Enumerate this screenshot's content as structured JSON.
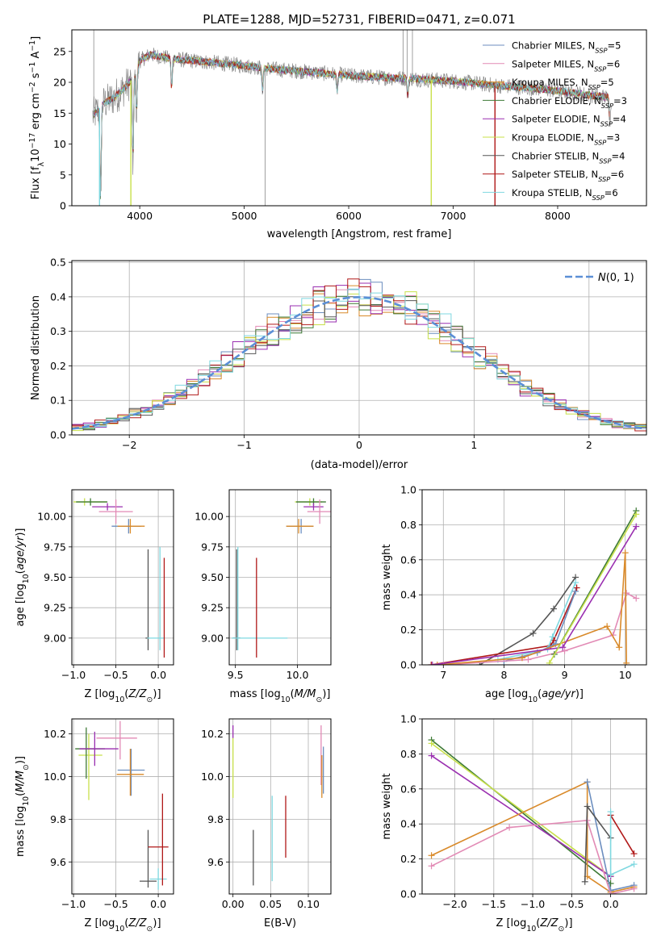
{
  "figure": {
    "title": "PLATE=1288, MJD=52731, FIBERID=0471, z=0.071"
  },
  "colors": {
    "Chabrier MILES": "#6c8ebf",
    "Salpeter MILES": "#e28ab5",
    "Kroupa MILES": "#d98a2a",
    "Chabrier ELODIE": "#3d7a35",
    "Salpeter ELODIE": "#9a2fb0",
    "Kroupa ELODIE": "#c8e04a",
    "Chabrier STELIB": "#555555",
    "Salpeter STELIB": "#b01818",
    "Kroupa STELIB": "#7fd8e0",
    "data": "#8a8a8a",
    "normal_curve": "#5b8fd6"
  },
  "chart_data": [
    {
      "id": "spectrum",
      "type": "line",
      "title": "PLATE=1288, MJD=52731, FIBERID=0471, z=0.071",
      "xlabel": "wavelength [Angstrom, rest frame]",
      "ylabel": "Flux [f_λ 10^-17 erg cm^-2 s^-1 A^-1]",
      "xlim": [
        3350,
        8850
      ],
      "ylim": [
        0,
        28.5
      ],
      "xticks": [
        4000,
        5000,
        6000,
        7000,
        8000
      ],
      "yticks": [
        0,
        5,
        10,
        15,
        20,
        25
      ],
      "grid": false,
      "legend_position": "top-right",
      "legend": [
        {
          "model": "Chabrier MILES",
          "label": "Chabrier MILES, N_SSP=5"
        },
        {
          "model": "Salpeter MILES",
          "label": "Salpeter MILES, N_SSP=6"
        },
        {
          "model": "Kroupa MILES",
          "label": "Kroupa MILES, N_SSP=5"
        },
        {
          "model": "Chabrier ELODIE",
          "label": "Chabrier ELODIE, N_SSP=3"
        },
        {
          "model": "Salpeter ELODIE",
          "label": "Salpeter ELODIE, N_SSP=4"
        },
        {
          "model": "Kroupa ELODIE",
          "label": "Kroupa ELODIE, N_SSP=3"
        },
        {
          "model": "Chabrier STELIB",
          "label": "Chabrier STELIB, N_SSP=4"
        },
        {
          "model": "Salpeter STELIB",
          "label": "Salpeter STELIB, N_SSP=6"
        },
        {
          "model": "Kroupa STELIB",
          "label": "Kroupa STELIB, N_SSP=6"
        }
      ],
      "continuum": {
        "x": [
          3550,
          3650,
          3750,
          3850,
          3950,
          4000,
          4100,
          4300,
          4500,
          4700,
          5000,
          5300,
          5600,
          6000,
          6300,
          6600,
          7000,
          7400,
          7800,
          8200,
          8500
        ],
        "y": [
          14.5,
          16.5,
          17.5,
          19,
          21,
          23.5,
          24.5,
          23.8,
          23.5,
          23.2,
          22.7,
          22.1,
          21.7,
          21.1,
          20.8,
          20.6,
          20.2,
          19.5,
          19.0,
          18.2,
          17.5
        ]
      },
      "absorption_features": [
        {
          "x": 3625,
          "depth": 16
        },
        {
          "x": 3935,
          "depth": 14
        },
        {
          "x": 3970,
          "depth": 7
        },
        {
          "x": 4305,
          "depth": 5
        },
        {
          "x": 5175,
          "depth": 4
        },
        {
          "x": 5890,
          "depth": 3
        },
        {
          "x": 6565,
          "depth": 3
        },
        {
          "x": 8500,
          "depth": 4
        },
        {
          "x": 8545,
          "depth": 4
        },
        {
          "x": 8665,
          "depth": 4
        }
      ],
      "model_dropouts": [
        {
          "model": "Kroupa ELODIE",
          "x": 3915
        },
        {
          "model": "Kroupa ELODIE",
          "x": 6790
        },
        {
          "model": "Salpeter STELIB",
          "x": 7400
        },
        {
          "model": "Kroupa STELIB",
          "x": 3615
        }
      ],
      "data_spikes": [
        {
          "x": 3560,
          "y": 28.5
        },
        {
          "x": 5200,
          "y": 0
        },
        {
          "x": 6520,
          "y": 28.5
        },
        {
          "x": 6560,
          "y": 28.5
        },
        {
          "x": 6610,
          "y": 28.5
        }
      ]
    },
    {
      "id": "residuals",
      "type": "bar",
      "xlabel": "(data-model)/error",
      "ylabel": "Normed distribution",
      "xlim": [
        -2.5,
        2.5
      ],
      "ylim": [
        0,
        0.505
      ],
      "xticks": [
        -2,
        -1,
        0,
        1,
        2
      ],
      "yticks": [
        0.0,
        0.1,
        0.2,
        0.3,
        0.4,
        0.5
      ],
      "grid": true,
      "legend_position": "top-right",
      "legend": [
        {
          "label": "N(0,1)"
        }
      ],
      "bin_width": 0.1
    },
    {
      "id": "age-vs-Z",
      "type": "scatter",
      "xlabel": "Z [log10(Z/Z⊙)]",
      "ylabel": "age  [log10(age/yr)]",
      "xlim": [
        -1.02,
        0.18
      ],
      "ylim": [
        8.78,
        10.22
      ],
      "xticks": [
        -1.0,
        -0.5,
        0.0
      ],
      "yticks": [
        9.0,
        9.25,
        9.5,
        9.75,
        10.0
      ],
      "grid": true,
      "points": [
        {
          "model": "Kroupa ELODIE",
          "x": -0.87,
          "y": 10.12,
          "xerr": [
            0.13,
            0.26
          ],
          "yerr": [
            0.03,
            0.03
          ]
        },
        {
          "model": "Chabrier ELODIE",
          "x": -0.8,
          "y": 10.12,
          "xerr": [
            0.17,
            0.2
          ],
          "yerr": [
            0.03,
            0.03
          ]
        },
        {
          "model": "Salpeter ELODIE",
          "x": -0.6,
          "y": 10.08,
          "xerr": [
            0.18,
            0.18
          ],
          "yerr": [
            0.03,
            0.03
          ]
        },
        {
          "model": "Salpeter MILES",
          "x": -0.5,
          "y": 10.04,
          "xerr": [
            0.2,
            0.2
          ],
          "yerr": [
            0.1,
            0.1
          ]
        },
        {
          "model": "Chabrier MILES",
          "x": -0.35,
          "y": 9.92,
          "xerr": [
            0.2,
            0.15
          ],
          "yerr": [
            0.06,
            0.06
          ]
        },
        {
          "model": "Kroupa MILES",
          "x": -0.33,
          "y": 9.92,
          "xerr": [
            0.15,
            0.17
          ],
          "yerr": [
            0.06,
            0.06
          ]
        },
        {
          "model": "Chabrier STELIB",
          "x": -0.12,
          "y": 9.0,
          "xerr": [
            0.03,
            0.0
          ],
          "yerr": [
            0.1,
            0.73
          ]
        },
        {
          "model": "Kroupa STELIB",
          "x": 0.02,
          "y": 9.0,
          "xerr": [
            0.15,
            0.05
          ],
          "yerr": [
            0.1,
            0.75
          ]
        },
        {
          "model": "Salpeter STELIB",
          "x": 0.07,
          "y": 9.0,
          "xerr": [
            0.0,
            0.0
          ],
          "yerr": [
            0.16,
            0.66
          ]
        }
      ]
    },
    {
      "id": "age-vs-mass",
      "type": "scatter",
      "xlabel": "mass [log10(M/M⊙)]",
      "ylabel": "",
      "xlim": [
        9.45,
        10.27
      ],
      "ylim": [
        8.78,
        10.22
      ],
      "xticks": [
        9.5,
        10.0
      ],
      "yticks": [
        9.0,
        9.25,
        9.5,
        9.75,
        10.0
      ],
      "grid": true,
      "points": [
        {
          "model": "Kroupa ELODIE",
          "x": 10.1,
          "y": 10.12,
          "xerr": [
            0.12,
            0.1
          ],
          "yerr": [
            0.03,
            0.03
          ]
        },
        {
          "model": "Chabrier ELODIE",
          "x": 10.13,
          "y": 10.12,
          "xerr": [
            0.14,
            0.1
          ],
          "yerr": [
            0.03,
            0.03
          ]
        },
        {
          "model": "Salpeter ELODIE",
          "x": 10.13,
          "y": 10.08,
          "xerr": [
            0.08,
            0.08
          ],
          "yerr": [
            0.03,
            0.03
          ]
        },
        {
          "model": "Salpeter MILES",
          "x": 10.18,
          "y": 10.04,
          "xerr": [
            0.1,
            0.1
          ],
          "yerr": [
            0.1,
            0.1
          ]
        },
        {
          "model": "Chabrier MILES",
          "x": 10.03,
          "y": 9.92,
          "xerr": [
            0.12,
            0.1
          ],
          "yerr": [
            0.06,
            0.06
          ]
        },
        {
          "model": "Kroupa MILES",
          "x": 10.01,
          "y": 9.92,
          "xerr": [
            0.1,
            0.12
          ],
          "yerr": [
            0.06,
            0.06
          ]
        },
        {
          "model": "Chabrier STELIB",
          "x": 9.51,
          "y": 9.0,
          "xerr": [
            0.03,
            0.03
          ],
          "yerr": [
            0.1,
            0.73
          ]
        },
        {
          "model": "Kroupa STELIB",
          "x": 9.52,
          "y": 9.0,
          "xerr": [
            0.05,
            0.4
          ],
          "yerr": [
            0.1,
            0.75
          ]
        },
        {
          "model": "Salpeter STELIB",
          "x": 9.67,
          "y": 9.0,
          "xerr": [
            0.0,
            0.0
          ],
          "yerr": [
            0.16,
            0.66
          ]
        }
      ]
    },
    {
      "id": "weight-vs-age",
      "type": "line",
      "xlabel": "age  [log10(age/yr)]",
      "ylabel": "mass weight",
      "xlim": [
        6.65,
        10.35
      ],
      "ylim": [
        0,
        1.0
      ],
      "xticks": [
        7,
        8,
        9,
        10
      ],
      "yticks": [
        0.0,
        0.2,
        0.4,
        0.6,
        0.8,
        1.0
      ],
      "grid": true,
      "series": [
        {
          "model": "Chabrier STELIB",
          "x": [
            7.6,
            8.48,
            8.82,
            9.18
          ],
          "y": [
            0.0,
            0.18,
            0.32,
            0.5
          ]
        },
        {
          "model": "Salpeter STELIB",
          "x": [
            6.8,
            8.77,
            8.82,
            9.2
          ],
          "y": [
            0.0,
            0.11,
            0.14,
            0.44
          ]
        },
        {
          "model": "Kroupa STELIB",
          "x": [
            7.9,
            8.72,
            8.8,
            9.18
          ],
          "y": [
            0.03,
            0.09,
            0.16,
            0.47
          ]
        },
        {
          "model": "Chabrier MILES",
          "x": [
            8.0,
            8.55,
            8.85,
            9.18
          ],
          "y": [
            0.02,
            0.07,
            0.12,
            0.42
          ]
        },
        {
          "model": "Salpeter MILES",
          "x": [
            7.0,
            8.4,
            9.0,
            9.8,
            10.02,
            10.18
          ],
          "y": [
            0.0,
            0.03,
            0.08,
            0.17,
            0.41,
            0.38
          ]
        },
        {
          "model": "Kroupa MILES",
          "x": [
            6.9,
            8.3,
            9.7,
            9.9,
            10.0,
            10.02
          ],
          "y": [
            0.0,
            0.04,
            0.22,
            0.1,
            0.64,
            0.01
          ]
        },
        {
          "model": "Chabrier ELODIE",
          "x": [
            8.83,
            10.18
          ],
          "y": [
            0.06,
            0.88
          ]
        },
        {
          "model": "Salpeter ELODIE",
          "x": [
            6.82,
            8.97,
            10.18
          ],
          "y": [
            0.0,
            0.1,
            0.79
          ]
        },
        {
          "model": "Kroupa ELODIE",
          "x": [
            8.75,
            10.18
          ],
          "y": [
            0.01,
            0.86
          ]
        }
      ]
    },
    {
      "id": "mass-vs-Z",
      "type": "scatter",
      "xlabel": "Z [log10(Z/Z⊙)]",
      "ylabel": "mass [log10(M/M⊙)]",
      "xlim": [
        -1.02,
        0.18
      ],
      "ylim": [
        9.45,
        10.27
      ],
      "xticks": [
        -1.0,
        -0.5,
        0.0
      ],
      "yticks": [
        9.6,
        9.8,
        10.0,
        10.2
      ],
      "grid": true,
      "points": [
        {
          "model": "Kroupa ELODIE",
          "x": -0.82,
          "y": 10.1,
          "xerr": [
            0.12,
            0.16
          ],
          "yerr": [
            0.21,
            0.1
          ]
        },
        {
          "model": "Chabrier ELODIE",
          "x": -0.85,
          "y": 10.13,
          "xerr": [
            0.13,
            0.22
          ],
          "yerr": [
            0.14,
            0.1
          ]
        },
        {
          "model": "Salpeter ELODIE",
          "x": -0.75,
          "y": 10.13,
          "xerr": [
            0.18,
            0.28
          ],
          "yerr": [
            0.08,
            0.08
          ]
        },
        {
          "model": "Salpeter MILES",
          "x": -0.45,
          "y": 10.18,
          "xerr": [
            0.28,
            0.2
          ],
          "yerr": [
            0.1,
            0.08
          ]
        },
        {
          "model": "Chabrier MILES",
          "x": -0.32,
          "y": 10.03,
          "xerr": [
            0.16,
            0.16
          ],
          "yerr": [
            0.12,
            0.1
          ]
        },
        {
          "model": "Kroupa MILES",
          "x": -0.33,
          "y": 10.01,
          "xerr": [
            0.16,
            0.16
          ],
          "yerr": [
            0.1,
            0.12
          ]
        },
        {
          "model": "Chabrier STELIB",
          "x": -0.12,
          "y": 9.51,
          "xerr": [
            0.1,
            0.1
          ],
          "yerr": [
            0.03,
            0.24
          ]
        },
        {
          "model": "Kroupa STELIB",
          "x": 0.0,
          "y": 9.52,
          "xerr": [
            0.1,
            0.1
          ],
          "yerr": [
            0.05,
            0.05
          ]
        },
        {
          "model": "Salpeter STELIB",
          "x": 0.05,
          "y": 9.67,
          "xerr": [
            0.17,
            0.07
          ],
          "yerr": [
            0.18,
            0.25
          ]
        }
      ]
    },
    {
      "id": "mass-vs-EBV",
      "type": "scatter",
      "xlabel": "E(B-V)",
      "ylabel": "",
      "xlim": [
        -0.005,
        0.13
      ],
      "ylim": [
        9.45,
        10.27
      ],
      "xticks": [
        0.0,
        0.05,
        0.1
      ],
      "yticks": [
        9.6,
        9.8,
        10.0,
        10.2
      ],
      "grid": true,
      "points": [
        {
          "model": "Salpeter ELODIE",
          "x": 0.0,
          "y": 10.21,
          "yerr": [
            0.03,
            0.03
          ]
        },
        {
          "model": "Kroupa ELODIE",
          "x": 0.0,
          "y": 10.0,
          "yerr": [
            0.1,
            0.18
          ]
        },
        {
          "model": "Chabrier STELIB",
          "x": 0.027,
          "y": 9.6,
          "yerr": [
            0.11,
            0.15
          ]
        },
        {
          "model": "Kroupa STELIB",
          "x": 0.052,
          "y": 9.68,
          "yerr": [
            0.17,
            0.23
          ]
        },
        {
          "model": "Salpeter STELIB",
          "x": 0.07,
          "y": 9.76,
          "yerr": [
            0.14,
            0.15
          ]
        },
        {
          "model": "Salpeter MILES",
          "x": 0.117,
          "y": 10.08,
          "yerr": [
            0.12,
            0.16
          ]
        },
        {
          "model": "Kroupa MILES",
          "x": 0.118,
          "y": 10.0,
          "yerr": [
            0.1,
            0.1
          ]
        },
        {
          "model": "Chabrier MILES",
          "x": 0.12,
          "y": 10.0,
          "yerr": [
            0.08,
            0.14
          ]
        }
      ]
    },
    {
      "id": "weight-vs-Z",
      "type": "line",
      "xlabel": "Z [log10(Z/Z⊙)]",
      "ylabel": "mass weight",
      "xlim": [
        -2.42,
        0.46
      ],
      "ylim": [
        0,
        1.0
      ],
      "xticks": [
        -2.0,
        -1.5,
        -1.0,
        -0.5,
        0.0
      ],
      "yticks": [
        0.0,
        0.2,
        0.4,
        0.6,
        0.8,
        1.0
      ],
      "grid": true,
      "series": [
        {
          "model": "Chabrier ELODIE",
          "x": [
            -2.3,
            0.0
          ],
          "y": [
            0.88,
            0.06
          ]
        },
        {
          "model": "Kroupa ELODIE",
          "x": [
            -2.3,
            0.0
          ],
          "y": [
            0.86,
            0.1
          ]
        },
        {
          "model": "Salpeter ELODIE",
          "x": [
            -2.3,
            0.0
          ],
          "y": [
            0.79,
            0.1
          ]
        },
        {
          "model": "Kroupa MILES",
          "x": [
            -2.3,
            -0.3,
            -0.3,
            0.0,
            0.3
          ],
          "y": [
            0.22,
            0.64,
            0.1,
            0.01,
            0.04
          ]
        },
        {
          "model": "Chabrier MILES",
          "x": [
            -0.3,
            0.0,
            0.3
          ],
          "y": [
            0.64,
            0.02,
            0.05
          ]
        },
        {
          "model": "Salpeter MILES",
          "x": [
            -2.3,
            -1.3,
            -0.3,
            0.0,
            0.3
          ],
          "y": [
            0.16,
            0.38,
            0.42,
            0.0,
            0.03
          ]
        },
        {
          "model": "Chabrier STELIB",
          "x": [
            -0.33,
            -0.3,
            0.0
          ],
          "y": [
            0.07,
            0.5,
            0.32
          ]
        },
        {
          "model": "Salpeter STELIB",
          "x": [
            0.0,
            0.3
          ],
          "y": [
            0.45,
            0.23
          ]
        },
        {
          "model": "Kroupa STELIB",
          "x": [
            0.0,
            0.0,
            0.3
          ],
          "y": [
            0.47,
            0.11,
            0.17
          ]
        }
      ]
    }
  ]
}
